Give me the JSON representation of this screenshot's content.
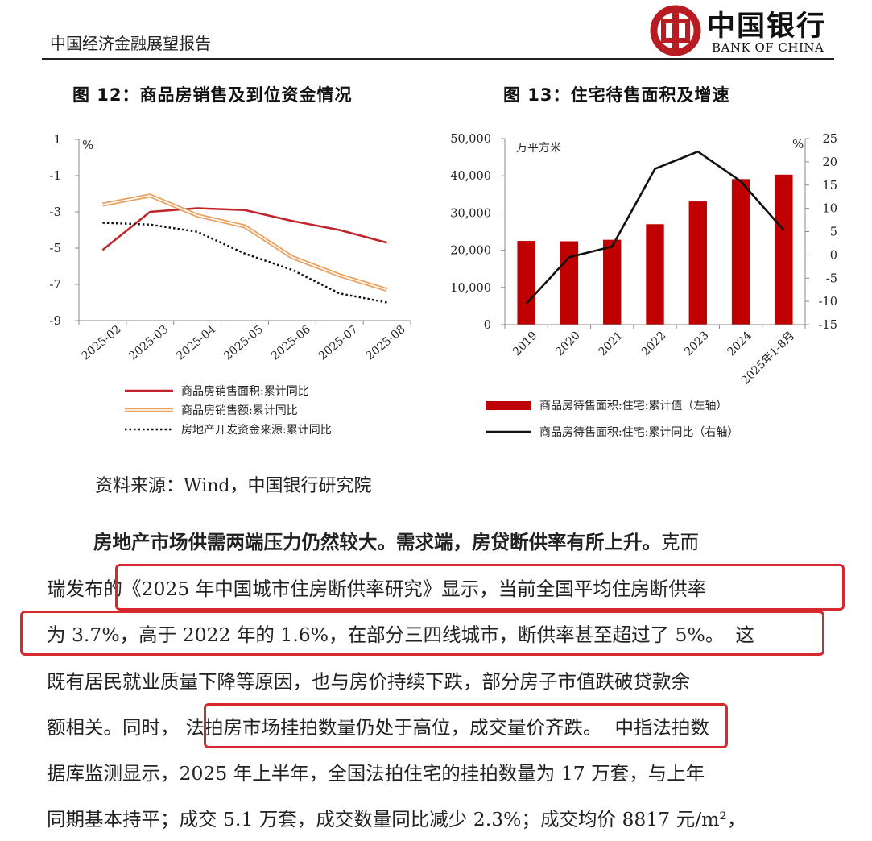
{
  "header": {
    "report_title": "中国经济金融展望报告",
    "logo_cn": "中国银行",
    "logo_en": "BANK OF CHINA",
    "logo_color": "#b81c22"
  },
  "fig12": {
    "title": "图 12：商品房销售及到位资金情况",
    "unit": "%",
    "chart_data": {
      "type": "line",
      "categories": [
        "2025-02",
        "2025-03",
        "2025-04",
        "2025-05",
        "2025-06",
        "2025-07",
        "2025-08"
      ],
      "ylim": [
        -9,
        1
      ],
      "yticks": [
        1,
        -1,
        -3,
        -5,
        -7,
        -9
      ],
      "series": [
        {
          "name": "商品房销售面积:累计同比",
          "color": "#c0242b",
          "style": "solid",
          "values": [
            -5.1,
            -3.0,
            -2.8,
            -2.9,
            -3.5,
            -4.0,
            -4.7
          ]
        },
        {
          "name": "商品房销售额:累计同比",
          "color": "#e9a05e",
          "style": "double",
          "values": [
            -2.6,
            -2.1,
            -3.2,
            -3.8,
            -5.5,
            -6.5,
            -7.3
          ]
        },
        {
          "name": "房地产开发资金来源:累计同比",
          "color": "#111111",
          "style": "dotted",
          "values": [
            -3.6,
            -3.7,
            -4.1,
            -5.3,
            -6.2,
            -7.5,
            -8.0
          ]
        }
      ]
    }
  },
  "fig13": {
    "title": "图 13：住宅待售面积及增速",
    "left_unit": "万平方米",
    "right_unit": "%",
    "chart_data": {
      "type": "bar",
      "categories": [
        "2019",
        "2020",
        "2021",
        "2022",
        "2023",
        "2024",
        "2025年1-8月"
      ],
      "ylim_left": [
        0,
        50000
      ],
      "yticks_left": [
        "0",
        "10,000",
        "20,000",
        "30,000",
        "40,000",
        "50,000"
      ],
      "ylim_right": [
        -15,
        25
      ],
      "yticks_right": [
        "-15",
        "-10",
        "-5",
        "0",
        "5",
        "10",
        "15",
        "20",
        "25"
      ],
      "series": [
        {
          "name": "商品房待售面积:住宅:累计值（左轴）",
          "type": "bar",
          "axis": "left",
          "color": "#c00000",
          "values": [
            22500,
            22400,
            22800,
            27000,
            33100,
            39100,
            40300
          ]
        },
        {
          "name": "商品房待售面积:住宅:累计同比（右轴）",
          "type": "line",
          "axis": "right",
          "color": "#111111",
          "values": [
            -10.5,
            -0.5,
            1.8,
            18.5,
            22.2,
            15.8,
            5.3
          ]
        }
      ]
    }
  },
  "source": "资料来源：Wind，中国银行研究院",
  "paragraph": {
    "l1_bold": "房地产市场供需两端压力仍然较大。需求端，房贷断供率有所上升。",
    "l1_rest": "克而",
    "l2_a": "瑞发布的",
    "l2_b": "《2025 年中国城市住房断供率研究》显示，当前全国平均住房断供率",
    "l3_a": "为 3.7%，高于 2022 年的 1.6%，在部分三四线城市，断供率甚至超过了 5%。",
    "l3_b": "这",
    "l4": "既有居民就业质量下降等原因，也与房价持续下跌，部分房子市值跌破贷款余",
    "l5_a": "额相关。同时，",
    "l5_b": "法拍房市场挂拍数量仍处于高位，成交量价齐跌。",
    "l5_c": "中指法拍数",
    "l6": "据库监测显示，2025 年上半年，全国法拍住宅的挂拍数量为 17 万套，与上年",
    "l7": "同期基本持平；成交 5.1 万套，成交数量同比减少 2.3%；成交均价 8817 元/m²，",
    "highlight_color": "#d7282f"
  }
}
